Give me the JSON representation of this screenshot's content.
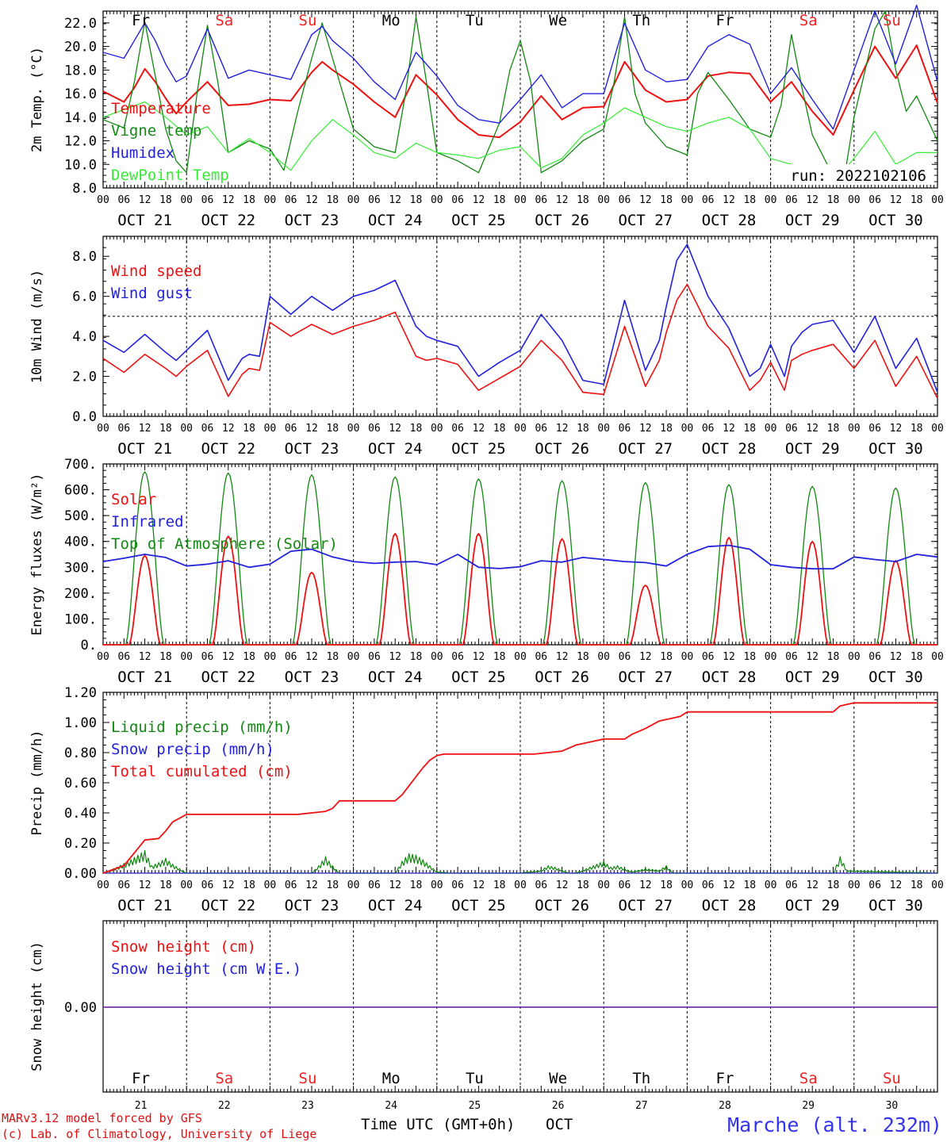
{
  "run_label": "run: 2022102106",
  "colors": {
    "red": "#ee1111",
    "blue": "#2222dd",
    "green": "#118811",
    "lightgreen": "#33ee33",
    "purple": "#7733aa",
    "black": "#000000",
    "weekend": "#ee2222"
  },
  "days": [
    {
      "abbr": "Fr",
      "date": "OCT 21",
      "num": "21",
      "weekend": false
    },
    {
      "abbr": "Sa",
      "date": "OCT 22",
      "num": "22",
      "weekend": true
    },
    {
      "abbr": "Su",
      "date": "OCT 23",
      "num": "23",
      "weekend": true
    },
    {
      "abbr": "Mo",
      "date": "OCT 24",
      "num": "24",
      "weekend": false
    },
    {
      "abbr": "Tu",
      "date": "OCT 25",
      "num": "25",
      "weekend": false
    },
    {
      "abbr": "We",
      "date": "OCT 26",
      "num": "26",
      "weekend": false
    },
    {
      "abbr": "Th",
      "date": "OCT 27",
      "num": "27",
      "weekend": false
    },
    {
      "abbr": "Fr",
      "date": "OCT 28",
      "num": "28",
      "weekend": false
    },
    {
      "abbr": "Sa",
      "date": "OCT 29",
      "num": "29",
      "weekend": true
    },
    {
      "abbr": "Su",
      "date": "OCT 30",
      "num": "30",
      "weekend": true
    }
  ],
  "hour_labels": [
    "00",
    "06",
    "12",
    "18"
  ],
  "final_hour_label": "00",
  "footer": {
    "model": "MARv3.12 model forced by GFS",
    "credit": "(c) Lab. of Climatology, University of Liege",
    "xlabel": "Time UTC (GMT+0h)",
    "month": "OCT",
    "station": "Marche (alt. 232m)"
  },
  "chart_data": [
    {
      "type": "line",
      "ylabel": "2m Temp. (°C)",
      "ylim": [
        8,
        23
      ],
      "yticks": [
        "8.0",
        "10.0",
        "12.0",
        "14.0",
        "16.0",
        "18.0",
        "20.0",
        "22.0"
      ],
      "x_unit": "hours since OCT 21 00 UTC",
      "xlim": [
        0,
        240
      ],
      "legend": "top-left",
      "series": [
        {
          "name": "Temperature",
          "color": "red",
          "x": [
            0,
            6,
            9,
            12,
            15,
            18,
            21,
            24,
            30,
            36,
            42,
            48,
            54,
            60,
            63,
            66,
            72,
            78,
            84,
            90,
            96,
            102,
            108,
            114,
            120,
            126,
            132,
            138,
            144,
            150,
            156,
            162,
            168,
            174,
            180,
            186,
            192,
            198,
            204,
            210,
            216,
            222,
            228,
            234,
            240
          ],
          "y": [
            16.2,
            15.3,
            16.5,
            18.1,
            17.0,
            15.6,
            14.3,
            15.3,
            17.0,
            15.0,
            15.1,
            15.5,
            15.4,
            17.8,
            18.7,
            18.0,
            16.8,
            15.3,
            14.0,
            17.6,
            15.9,
            13.8,
            12.5,
            12.3,
            13.6,
            15.8,
            13.8,
            14.8,
            14.9,
            18.7,
            16.3,
            15.3,
            15.5,
            17.5,
            17.8,
            17.7,
            15.3,
            17.0,
            14.5,
            12.5,
            16.3,
            20.0,
            17.3,
            20.1,
            15.2
          ]
        },
        {
          "name": "Vigne temp",
          "color": "green",
          "x": [
            0,
            6,
            9,
            12,
            15,
            18,
            21,
            24,
            27,
            30,
            33,
            36,
            42,
            48,
            52,
            56,
            60,
            63,
            66,
            72,
            78,
            84,
            87,
            90,
            93,
            96,
            102,
            108,
            114,
            117,
            120,
            123,
            126,
            132,
            138,
            144,
            147,
            150,
            153,
            156,
            162,
            168,
            171,
            174,
            180,
            186,
            192,
            195,
            198,
            201,
            204,
            210,
            213,
            216,
            222,
            225,
            228,
            231,
            234,
            240
          ],
          "y": [
            13.8,
            13.1,
            17.0,
            22.1,
            17.5,
            13.0,
            10.3,
            9.3,
            16.0,
            21.8,
            17.0,
            11.0,
            12.0,
            11.3,
            9.5,
            14.5,
            19.0,
            22.0,
            19.0,
            13.0,
            11.5,
            11.0,
            16.0,
            22.5,
            17.0,
            11.0,
            10.3,
            9.3,
            13.5,
            18.0,
            20.5,
            17.0,
            9.3,
            10.3,
            12.0,
            13.0,
            17.0,
            22.5,
            16.0,
            13.5,
            11.5,
            10.8,
            16.0,
            17.8,
            15.5,
            13.0,
            12.3,
            15.0,
            21.0,
            16.5,
            12.5,
            9.0,
            8.5,
            14.0,
            21.5,
            23.0,
            18.0,
            14.5,
            15.8,
            12.0
          ]
        },
        {
          "name": "Humidex",
          "color": "blue",
          "x": [
            0,
            6,
            9,
            12,
            15,
            18,
            21,
            24,
            30,
            36,
            42,
            48,
            54,
            60,
            63,
            66,
            72,
            78,
            84,
            90,
            96,
            102,
            108,
            114,
            120,
            126,
            132,
            138,
            144,
            150,
            156,
            162,
            168,
            174,
            180,
            186,
            192,
            198,
            204,
            210,
            216,
            222,
            228,
            234,
            240
          ],
          "y": [
            19.5,
            19.0,
            20.5,
            22.0,
            20.5,
            18.5,
            17.0,
            17.5,
            21.5,
            17.3,
            18.0,
            17.6,
            17.2,
            21.0,
            21.7,
            20.5,
            19.0,
            17.0,
            15.5,
            19.5,
            17.5,
            15.0,
            13.8,
            13.5,
            15.5,
            17.6,
            14.8,
            16.0,
            16.0,
            22.0,
            18.0,
            17.0,
            17.2,
            20.0,
            21.0,
            20.2,
            16.0,
            18.2,
            15.5,
            13.0,
            18.0,
            23.0,
            18.5,
            23.5,
            17.0
          ]
        },
        {
          "name": "DewPoint Temp",
          "color": "lightgreen",
          "x": [
            0,
            12,
            18,
            24,
            30,
            36,
            42,
            48,
            54,
            60,
            66,
            72,
            78,
            84,
            90,
            96,
            102,
            108,
            114,
            120,
            126,
            132,
            138,
            144,
            150,
            156,
            162,
            168,
            174,
            180,
            186,
            192,
            198,
            204,
            210,
            216,
            222,
            228,
            234,
            240
          ],
          "y": [
            14.0,
            15.3,
            14.0,
            12.5,
            13.2,
            11.0,
            12.2,
            11.0,
            9.5,
            12.0,
            13.8,
            12.5,
            11.0,
            10.5,
            11.8,
            11.0,
            10.8,
            10.5,
            11.2,
            11.5,
            9.7,
            10.5,
            12.5,
            13.5,
            14.8,
            14.0,
            13.2,
            12.8,
            13.5,
            14.0,
            13.0,
            10.5,
            10.0,
            9.3,
            8.5,
            10.5,
            12.8,
            10.0,
            11.0,
            11.0
          ]
        }
      ]
    },
    {
      "type": "line",
      "ylabel": "10m Wind (m/s)",
      "ylim": [
        0,
        9
      ],
      "yticks": [
        "0.0",
        "2.0",
        "4.0",
        "6.0",
        "8.0"
      ],
      "reference_line": 5,
      "xlim": [
        0,
        240
      ],
      "legend": "top-left",
      "series": [
        {
          "name": "Wind speed",
          "color": "red",
          "x": [
            0,
            6,
            12,
            18,
            21,
            24,
            30,
            36,
            40,
            42,
            45,
            48,
            54,
            60,
            66,
            72,
            78,
            84,
            90,
            93,
            96,
            102,
            108,
            114,
            117,
            120,
            126,
            132,
            138,
            144,
            150,
            156,
            160,
            162,
            165,
            168,
            174,
            180,
            186,
            189,
            192,
            196,
            198,
            201,
            204,
            210,
            216,
            222,
            228,
            234,
            240
          ],
          "y": [
            2.9,
            2.2,
            3.1,
            2.4,
            2.0,
            2.5,
            3.3,
            1.0,
            2.1,
            2.4,
            2.3,
            4.7,
            4.0,
            4.6,
            4.1,
            4.5,
            4.8,
            5.2,
            3.0,
            2.8,
            2.9,
            2.6,
            1.3,
            1.9,
            2.2,
            2.5,
            3.8,
            2.8,
            1.2,
            1.1,
            4.5,
            1.5,
            2.8,
            4.2,
            5.8,
            6.6,
            4.5,
            3.4,
            1.3,
            1.8,
            2.7,
            1.3,
            2.8,
            3.1,
            3.3,
            3.6,
            2.4,
            3.8,
            1.5,
            3.0,
            0.9
          ]
        },
        {
          "name": "Wind gust",
          "color": "blue",
          "x": [
            0,
            6,
            12,
            18,
            21,
            24,
            30,
            36,
            40,
            42,
            45,
            48,
            54,
            60,
            66,
            72,
            78,
            84,
            90,
            93,
            96,
            102,
            108,
            114,
            117,
            120,
            126,
            132,
            138,
            144,
            150,
            156,
            160,
            162,
            165,
            168,
            174,
            180,
            186,
            189,
            192,
            196,
            198,
            201,
            204,
            210,
            216,
            222,
            228,
            234,
            240
          ],
          "y": [
            3.8,
            3.2,
            4.1,
            3.2,
            2.8,
            3.3,
            4.3,
            1.8,
            2.9,
            3.1,
            3.0,
            6.0,
            5.1,
            6.0,
            5.3,
            6.0,
            6.3,
            6.8,
            4.5,
            4.0,
            3.8,
            3.5,
            2.0,
            2.7,
            3.0,
            3.3,
            5.1,
            3.8,
            1.8,
            1.6,
            5.8,
            2.3,
            3.8,
            5.5,
            7.8,
            8.6,
            6.0,
            4.4,
            2.0,
            2.4,
            3.6,
            2.0,
            3.5,
            4.2,
            4.6,
            4.8,
            3.2,
            5.0,
            2.4,
            3.9,
            1.2
          ]
        }
      ]
    },
    {
      "type": "line",
      "ylabel": "Energy fluxes (W/m²)",
      "ylim": [
        0,
        700
      ],
      "yticks": [
        "0.",
        "100.",
        "200.",
        "300.",
        "400.",
        "500.",
        "600.",
        "700."
      ],
      "xlim": [
        0,
        240
      ],
      "legend": "top-left",
      "daily_peaks_solar": [
        345,
        420,
        280,
        430,
        430,
        410,
        230,
        415,
        400,
        325
      ],
      "daily_peaks_toa": [
        670,
        665,
        658,
        650,
        642,
        635,
        628,
        620,
        613,
        607
      ],
      "series": [
        {
          "name": "Solar",
          "color": "red"
        },
        {
          "name": "Infrared",
          "color": "blue",
          "x": [
            0,
            6,
            12,
            18,
            24,
            30,
            36,
            42,
            48,
            54,
            60,
            66,
            72,
            78,
            84,
            90,
            96,
            102,
            108,
            114,
            120,
            126,
            132,
            138,
            144,
            150,
            156,
            162,
            168,
            174,
            180,
            186,
            192,
            198,
            204,
            210,
            216,
            222,
            228,
            234,
            240
          ],
          "y": [
            322,
            335,
            350,
            338,
            305,
            312,
            325,
            300,
            312,
            362,
            370,
            340,
            322,
            315,
            320,
            322,
            310,
            350,
            300,
            295,
            302,
            325,
            320,
            338,
            330,
            322,
            318,
            305,
            350,
            380,
            385,
            370,
            310,
            300,
            294,
            294,
            340,
            330,
            322,
            350,
            340
          ]
        },
        {
          "name": "Top of Atmosphere (Solar)",
          "color": "green"
        }
      ]
    },
    {
      "type": "line",
      "ylabel": "Precip (mm/h)",
      "ylim": [
        0,
        1.2
      ],
      "yticks": [
        "0.00",
        "0.20",
        "0.40",
        "0.60",
        "0.80",
        "1.00",
        "1.20"
      ],
      "xlim": [
        0,
        240
      ],
      "legend": "top-left",
      "series": [
        {
          "name": "Liquid precip (mm/h)",
          "color": "green",
          "x": [
            0,
            4,
            8,
            12,
            14,
            16,
            18,
            20,
            24,
            60,
            62,
            64,
            66,
            68,
            84,
            86,
            88,
            90,
            92,
            94,
            96,
            100,
            120,
            126,
            128,
            130,
            132,
            134,
            136,
            144,
            146,
            148,
            150,
            152,
            156,
            160,
            162,
            164,
            210,
            212,
            214,
            240
          ],
          "y": [
            0,
            0.04,
            0.09,
            0.15,
            0.05,
            0.07,
            0.1,
            0.06,
            0,
            0,
            0.05,
            0.11,
            0.05,
            0,
            0,
            0.08,
            0.13,
            0.12,
            0.09,
            0.05,
            0.01,
            0,
            0,
            0.02,
            0.05,
            0.04,
            0.02,
            0,
            0,
            0.08,
            0.04,
            0.05,
            0.03,
            0.01,
            0.03,
            0.02,
            0.05,
            0,
            0,
            0.11,
            0.02,
            0
          ]
        },
        {
          "name": "Snow precip (mm/h)",
          "color": "blue"
        },
        {
          "name": "Total cumulated (cm)",
          "color": "red",
          "x": [
            0,
            6,
            12,
            16,
            18,
            20,
            24,
            40,
            56,
            64,
            66,
            68,
            72,
            84,
            86,
            88,
            90,
            92,
            94,
            96,
            98,
            100,
            108,
            124,
            128,
            132,
            136,
            144,
            150,
            152,
            156,
            160,
            162,
            166,
            168,
            172,
            210,
            212,
            216,
            240
          ],
          "y": [
            0,
            0.05,
            0.22,
            0.23,
            0.28,
            0.34,
            0.39,
            0.39,
            0.39,
            0.41,
            0.43,
            0.48,
            0.48,
            0.48,
            0.52,
            0.58,
            0.64,
            0.7,
            0.75,
            0.78,
            0.79,
            0.79,
            0.79,
            0.79,
            0.8,
            0.81,
            0.85,
            0.89,
            0.89,
            0.92,
            0.96,
            1.01,
            1.02,
            1.04,
            1.07,
            1.07,
            1.07,
            1.11,
            1.13,
            1.13
          ]
        }
      ]
    },
    {
      "type": "line",
      "ylabel": "Snow height (cm)",
      "yticks": [
        "0.00"
      ],
      "xlim": [
        0,
        240
      ],
      "legend": "top-left",
      "series": [
        {
          "name": "Snow height (cm)",
          "color": "red",
          "x": [
            0,
            240
          ],
          "y": [
            0,
            0
          ]
        },
        {
          "name": "Snow height (cm W.E.)",
          "color": "blue",
          "x": [
            0,
            240
          ],
          "y": [
            0,
            0
          ]
        }
      ]
    }
  ]
}
